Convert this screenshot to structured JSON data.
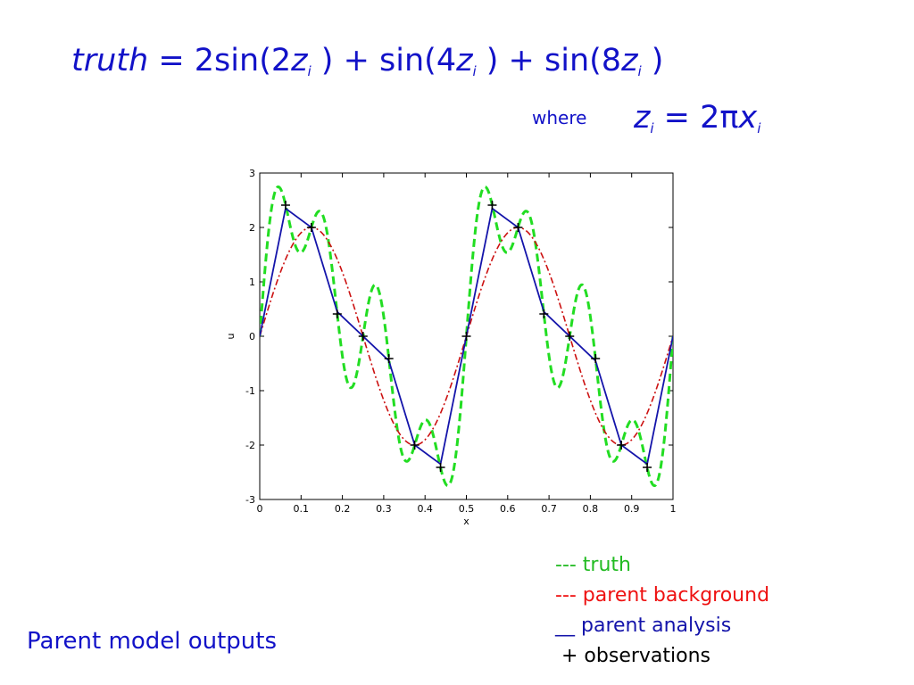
{
  "formula": {
    "lhs": "truth",
    "eq": " = 2sin(2",
    "z1": "z",
    "i1": "i",
    "p1": " ) + sin(4",
    "z2": "z",
    "i2": "i",
    "p2": " ) + sin(8",
    "z3": "z",
    "i3": "i",
    "p3": " )"
  },
  "where": {
    "label": "where",
    "z": "z",
    "zsub": "i",
    "eq": " = 2π",
    "x": "x",
    "xsub": "i"
  },
  "legend": {
    "truth": "--- truth",
    "background": "--- parent background",
    "analysis": "__ parent analysis",
    "observations": "+ observations"
  },
  "footer": "Parent model outputs",
  "colors": {
    "text": "#1212c8",
    "truth": "#22dd22",
    "background": "#cc1111",
    "analysis": "#1414aa",
    "observations": "#000000"
  },
  "chart_data": {
    "type": "line",
    "xlabel": "x",
    "ylabel": "u",
    "xlim": [
      0,
      1
    ],
    "ylim": [
      -3,
      3
    ],
    "xticks": [
      "0",
      "0.1",
      "0.2",
      "0.3",
      "0.4",
      "0.5",
      "0.6",
      "0.7",
      "0.8",
      "0.9",
      "1"
    ],
    "yticks": [
      "-3",
      "-2",
      "-1",
      "0",
      "1",
      "2",
      "3"
    ],
    "grid": false,
    "series": [
      {
        "name": "truth",
        "style": "dashed",
        "formula": "2sin(2z)+sin(4z)+sin(8z), z=2πx"
      },
      {
        "name": "parent background",
        "style": "dashdot",
        "formula": "2sin(2z), z=2πx"
      },
      {
        "name": "parent analysis",
        "style": "solid",
        "x": [
          0,
          0.0625,
          0.125,
          0.1875,
          0.25,
          0.3125,
          0.375,
          0.4375,
          0.5,
          0.5625,
          0.625,
          0.6875,
          0.75,
          0.8125,
          0.875,
          0.9375,
          1.0
        ],
        "y": [
          0,
          2.35,
          2.0,
          0.45,
          0,
          -0.45,
          -2.0,
          -2.35,
          0,
          2.35,
          2.0,
          0.45,
          0,
          -0.45,
          -2.0,
          -2.35,
          0
        ]
      },
      {
        "name": "observations",
        "style": "markers",
        "x": [
          0.0625,
          0.125,
          0.1875,
          0.25,
          0.3125,
          0.375,
          0.4375,
          0.5,
          0.5625,
          0.625,
          0.6875,
          0.75,
          0.8125,
          0.875,
          0.9375
        ],
        "y": [
          2.41,
          2.0,
          0.41,
          0,
          -0.41,
          -2.0,
          -2.41,
          0,
          2.41,
          2.0,
          0.41,
          0,
          -0.41,
          -2.0,
          -2.41
        ]
      }
    ]
  }
}
